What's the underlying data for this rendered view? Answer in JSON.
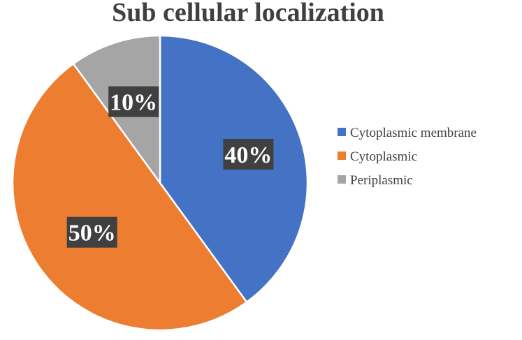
{
  "chart_data": {
    "type": "pie",
    "title": "Sub cellular localization",
    "legend_position": "right",
    "slices": [
      {
        "name": "Cytoplasmic membrane",
        "value": 40,
        "label": "40%",
        "color": "#4472C4"
      },
      {
        "name": "Cytoplasmic",
        "value": 50,
        "label": "50%",
        "color": "#ED7D31"
      },
      {
        "name": "Periplasmic",
        "value": 10,
        "label": "10%",
        "color": "#A5A5A5"
      }
    ]
  }
}
